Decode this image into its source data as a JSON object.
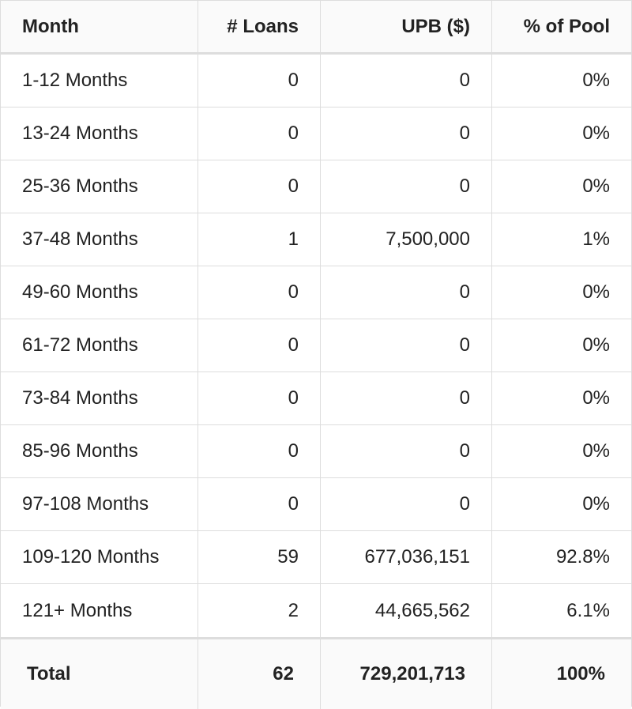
{
  "table": {
    "header": [
      "Month",
      "# Loans",
      "UPB ($)",
      "% of Pool"
    ],
    "rows": [
      [
        "1-12 Months",
        "0",
        "0",
        "0%"
      ],
      [
        "13-24 Months",
        "0",
        "0",
        "0%"
      ],
      [
        "25-36 Months",
        "0",
        "0",
        "0%"
      ],
      [
        "37-48 Months",
        "1",
        "7,500,000",
        "1%"
      ],
      [
        "49-60 Months",
        "0",
        "0",
        "0%"
      ],
      [
        "61-72 Months",
        "0",
        "0",
        "0%"
      ],
      [
        "73-84 Months",
        "0",
        "0",
        "0%"
      ],
      [
        "85-96 Months",
        "0",
        "0",
        "0%"
      ],
      [
        "97-108 Months",
        "0",
        "0",
        "0%"
      ],
      [
        "109-120 Months",
        "59",
        "677,036,151",
        "92.8%"
      ],
      [
        "121+ Months",
        "2",
        "44,665,562",
        "6.1%"
      ]
    ],
    "total": [
      "Total",
      "62",
      "729,201,713",
      "100%"
    ]
  }
}
